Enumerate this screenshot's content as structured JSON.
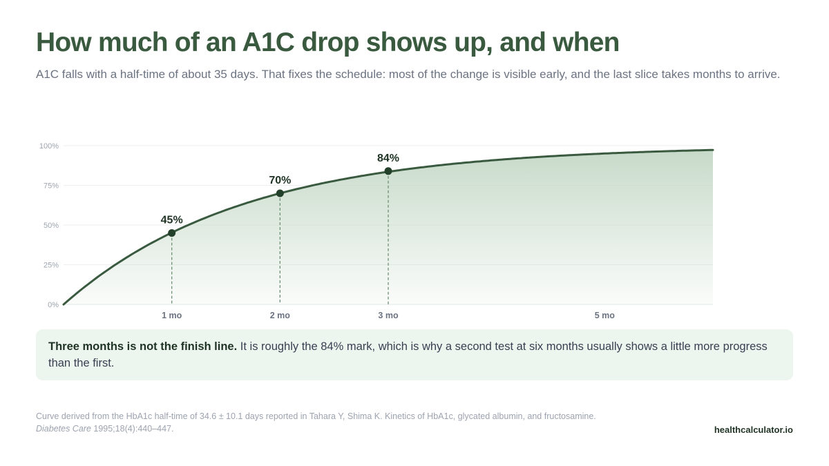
{
  "header": {
    "title": "How much of an A1C drop shows up, and when",
    "subtitle": "A1C falls with a half-time of about 35 days. That fixes the schedule: most of the change is visible early, and the last slice takes months to arrive."
  },
  "chart_data": {
    "type": "area",
    "title": "",
    "xlabel": "",
    "ylabel": "",
    "half_time_days": 35,
    "x_unit": "months",
    "xlim": [
      0,
      6
    ],
    "ylim": [
      0,
      100
    ],
    "y_ticks": [
      "0%",
      "25%",
      "50%",
      "75%",
      "100%"
    ],
    "y_tick_values": [
      0,
      25,
      50,
      75,
      100
    ],
    "x_ticks": [
      {
        "value": 1,
        "label": "1 mo"
      },
      {
        "value": 2,
        "label": "2 mo"
      },
      {
        "value": 3,
        "label": "3 mo"
      },
      {
        "value": 5,
        "label": "5 mo"
      }
    ],
    "highlighted_points": [
      {
        "x": 1,
        "y": 45,
        "label": "45%"
      },
      {
        "x": 2,
        "y": 70,
        "label": "70%"
      },
      {
        "x": 3,
        "y": 84,
        "label": "84%"
      }
    ],
    "grid": true,
    "legend": "none",
    "colors": {
      "line": "#3a5a40",
      "fill": "#c9dcca",
      "point": "#23402a",
      "drop_line": "#6f8f73"
    }
  },
  "note": {
    "strong": "Three months is not the finish line.",
    "text": " It is roughly the 84% mark, which is why a second test at six months usually shows a little more progress than the first."
  },
  "footer": {
    "source_line1": "Curve derived from the HbA1c half-time of 34.6 ± 10.1 days reported in Tahara Y, Shima K. Kinetics of HbA1c, glycated albumin, and fructosamine.",
    "source_journal": "Diabetes Care",
    "source_line2_rest": " 1995;18(4):440–447.",
    "brand": "healthcalculator.io"
  }
}
